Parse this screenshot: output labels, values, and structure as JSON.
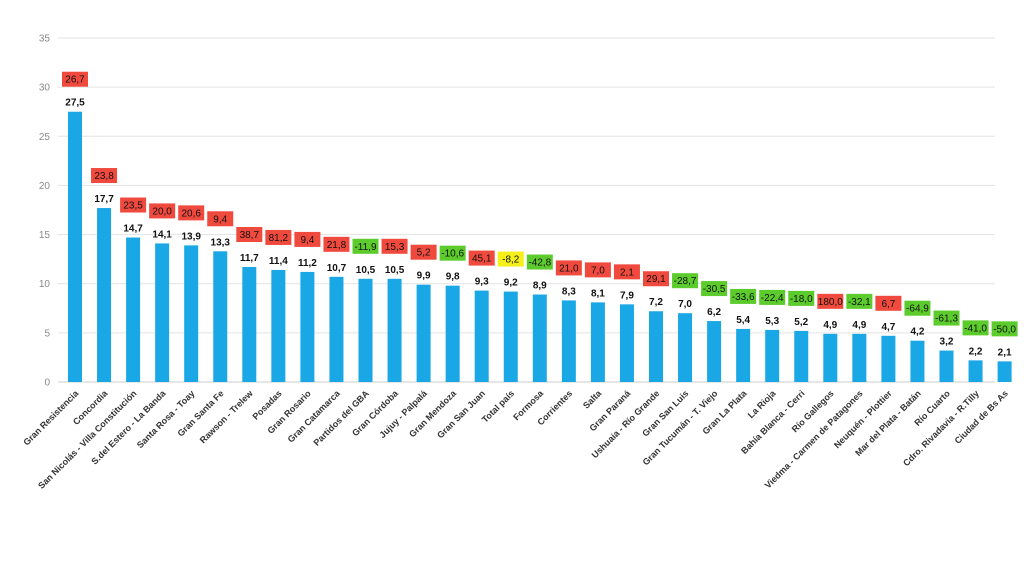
{
  "chart_data": {
    "type": "bar",
    "categories": [
      "Gran Resistencia",
      "Concordia",
      "San Nicolás - Villa Constitución",
      "S.del Estero - La Banda",
      "Santa Rosa - Toay",
      "Gran Santa Fe",
      "Rawson - Trelew",
      "Posadas",
      "Gran Rosario",
      "Gran Catamarca",
      "Partidos del GBA",
      "Gran Córdoba",
      "Jujuy - Palpalá",
      "Gran Mendoza",
      "Gran San Juan",
      "Total país",
      "Formosa",
      "Corrientes",
      "Salta",
      "Gran Paraná",
      "Ushuaia - Río Grande",
      "Gran San Luis",
      "Gran Tucumán - T. Viejo",
      "Gran La Plata",
      "La Rioja",
      "Bahía Blanca - Cerri",
      "Río Gallegos",
      "Viedma - Carmen de Patagones",
      "Neuquén - Plottier",
      "Mar del Plata - Batán",
      "Río Cuarto",
      "Cdro. Rivadavia - R.Tilly",
      "Ciudad de Bs As"
    ],
    "values": [
      27.5,
      17.7,
      14.7,
      14.1,
      13.9,
      13.3,
      11.7,
      11.4,
      11.2,
      10.7,
      10.5,
      10.5,
      9.9,
      9.8,
      9.3,
      9.2,
      8.9,
      8.3,
      8.1,
      7.9,
      7.2,
      7.0,
      6.2,
      5.4,
      5.3,
      5.2,
      4.9,
      4.9,
      4.7,
      4.2,
      3.2,
      2.2,
      2.1
    ],
    "value_labels": [
      "27,5",
      "17,7",
      "14,7",
      "14,1",
      "13,9",
      "13,3",
      "11,7",
      "11,4",
      "11,2",
      "10,7",
      "10,5",
      "10,5",
      "9,9",
      "9,8",
      "9,3",
      "9,2",
      "8,9",
      "8,3",
      "8,1",
      "7,9",
      "7,2",
      "7,0",
      "6,2",
      "5,4",
      "5,3",
      "5,2",
      "4,9",
      "4,9",
      "4,7",
      "4,2",
      "3,2",
      "2,2",
      "2,1"
    ],
    "changes": [
      "26,7",
      "23,8",
      "23,5",
      "20,0",
      "20,6",
      "9,4",
      "38,7",
      "81,2",
      "9,4",
      "21,8",
      "-11,9",
      "15,3",
      "5,2",
      "-10,6",
      "45,1",
      "-8,2",
      "-42,8",
      "21,0",
      "7,0",
      "2,1",
      "29,1",
      "-28,7",
      "-30,5",
      "-33,6",
      "-22,4",
      "-18,0",
      "180,0",
      "-32,1",
      "6,7",
      "-64,9",
      "-61,3",
      "-41,0",
      "-50,0"
    ],
    "change_kind": [
      "up",
      "up",
      "up",
      "up",
      "up",
      "up",
      "up",
      "up",
      "up",
      "up",
      "down",
      "up",
      "up",
      "down",
      "up",
      "total",
      "down",
      "up",
      "up",
      "up",
      "up",
      "down",
      "down",
      "down",
      "down",
      "down",
      "up",
      "down",
      "up",
      "down",
      "down",
      "down",
      "down"
    ],
    "yticks": [
      "0",
      "5",
      "10",
      "15",
      "20",
      "25",
      "30",
      "35"
    ],
    "ylim": [
      0,
      35
    ],
    "grid": true,
    "colors": {
      "bar": "#1aa7e6",
      "up": "#f04a3e",
      "down": "#5ccb2c",
      "total": "#f5f01a",
      "grid": "#e3e3e3"
    }
  }
}
